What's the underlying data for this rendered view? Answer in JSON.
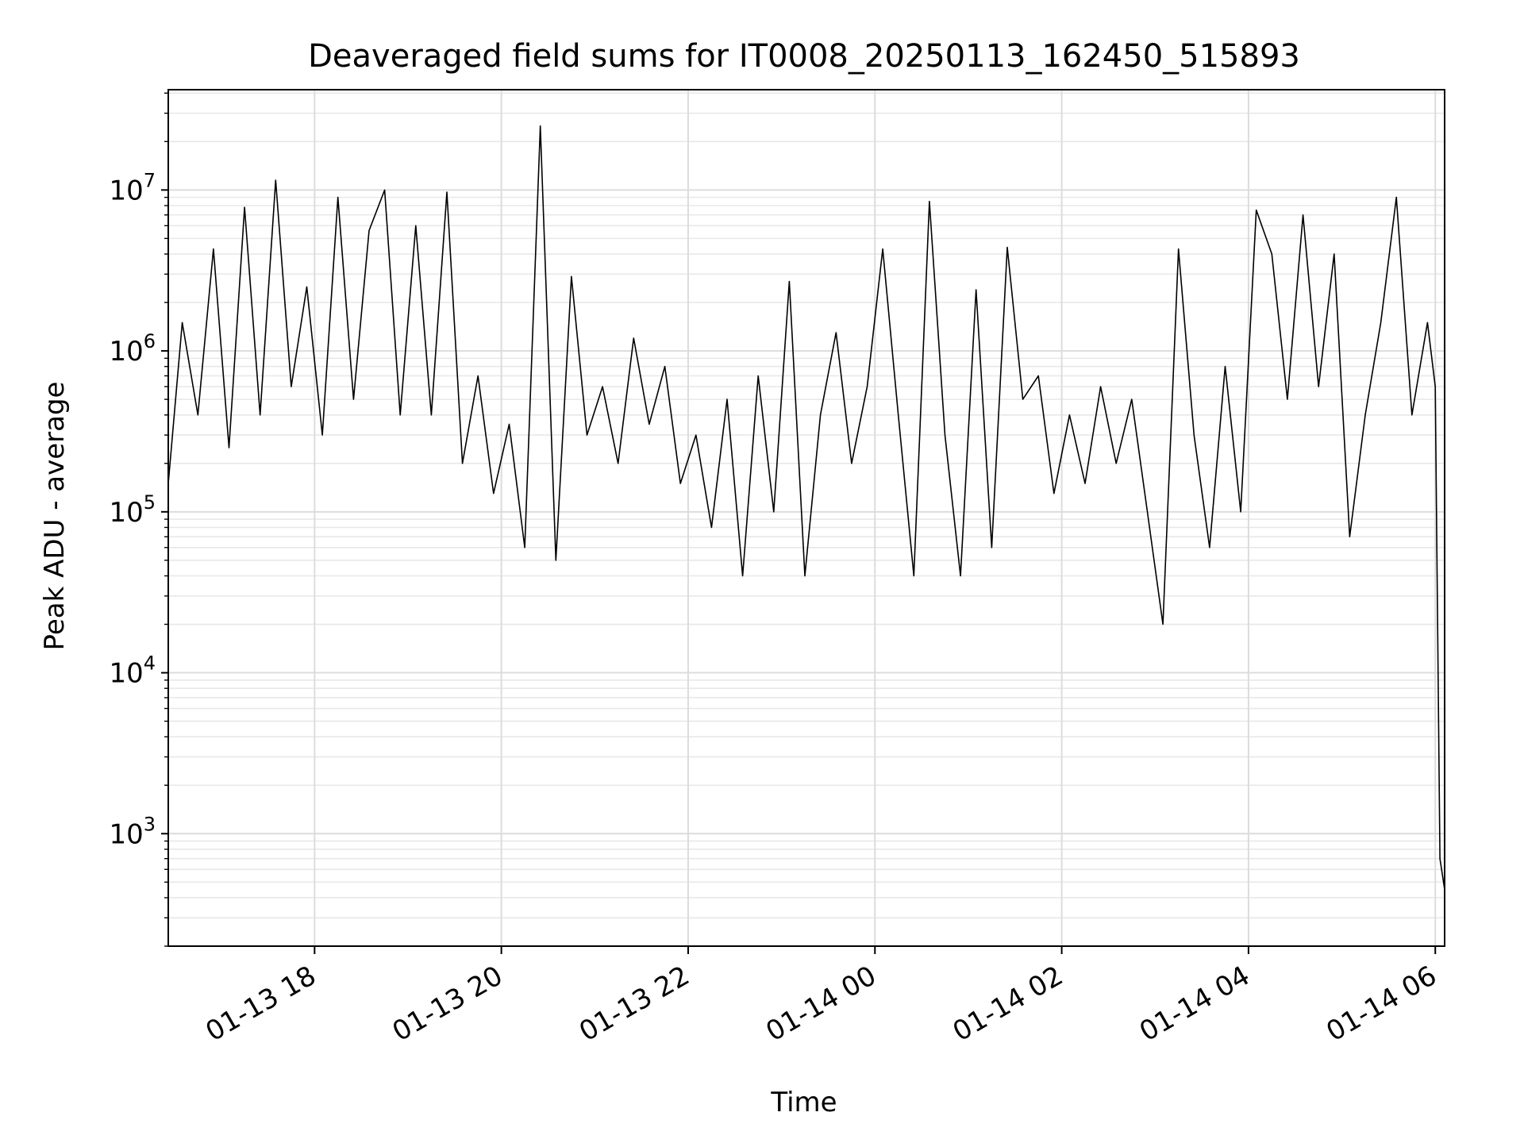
{
  "chart_data": {
    "type": "line",
    "title": "Deaveraged field sums for IT0008_20250113_162450_515893",
    "xlabel": "Time",
    "ylabel": "Peak ADU - average",
    "yscale": "log",
    "xlim": [
      "2025-01-13 16:26",
      "2025-01-14 06:06"
    ],
    "ylim": [
      200,
      42000000
    ],
    "grid": true,
    "line_color": "#000000",
    "x_ticks": [
      {
        "t": "2025-01-13 18:00",
        "label": "01-13 18"
      },
      {
        "t": "2025-01-13 20:00",
        "label": "01-13 20"
      },
      {
        "t": "2025-01-13 22:00",
        "label": "01-13 22"
      },
      {
        "t": "2025-01-14 00:00",
        "label": "01-14 00"
      },
      {
        "t": "2025-01-14 02:00",
        "label": "01-14 02"
      },
      {
        "t": "2025-01-14 04:00",
        "label": "01-14 04"
      },
      {
        "t": "2025-01-14 06:00",
        "label": "01-14 06"
      }
    ],
    "y_ticks": [
      {
        "v": 1000,
        "base": "10",
        "exp": "3"
      },
      {
        "v": 10000,
        "base": "10",
        "exp": "4"
      },
      {
        "v": 100000,
        "base": "10",
        "exp": "5"
      },
      {
        "v": 1000000,
        "base": "10",
        "exp": "6"
      },
      {
        "v": 10000000,
        "base": "10",
        "exp": "7"
      }
    ],
    "series": [
      {
        "x": [
          "2025-01-13 16:26",
          "2025-01-13 16:35",
          "2025-01-13 16:45",
          "2025-01-13 16:55",
          "2025-01-13 17:05",
          "2025-01-13 17:15",
          "2025-01-13 17:25",
          "2025-01-13 17:35",
          "2025-01-13 17:45",
          "2025-01-13 17:55",
          "2025-01-13 18:05",
          "2025-01-13 18:15",
          "2025-01-13 18:25",
          "2025-01-13 18:35",
          "2025-01-13 18:45",
          "2025-01-13 18:55",
          "2025-01-13 19:05",
          "2025-01-13 19:15",
          "2025-01-13 19:25",
          "2025-01-13 19:35",
          "2025-01-13 19:45",
          "2025-01-13 19:55",
          "2025-01-13 20:05",
          "2025-01-13 20:15",
          "2025-01-13 20:25",
          "2025-01-13 20:35",
          "2025-01-13 20:45",
          "2025-01-13 20:55",
          "2025-01-13 21:05",
          "2025-01-13 21:15",
          "2025-01-13 21:25",
          "2025-01-13 21:35",
          "2025-01-13 21:45",
          "2025-01-13 21:55",
          "2025-01-13 22:05",
          "2025-01-13 22:15",
          "2025-01-13 22:25",
          "2025-01-13 22:35",
          "2025-01-13 22:45",
          "2025-01-13 22:55",
          "2025-01-13 23:05",
          "2025-01-13 23:15",
          "2025-01-13 23:25",
          "2025-01-13 23:35",
          "2025-01-13 23:45",
          "2025-01-13 23:55",
          "2025-01-14 00:05",
          "2025-01-14 00:15",
          "2025-01-14 00:25",
          "2025-01-14 00:35",
          "2025-01-14 00:45",
          "2025-01-14 00:55",
          "2025-01-14 01:05",
          "2025-01-14 01:15",
          "2025-01-14 01:25",
          "2025-01-14 01:35",
          "2025-01-14 01:45",
          "2025-01-14 01:55",
          "2025-01-14 02:05",
          "2025-01-14 02:15",
          "2025-01-14 02:25",
          "2025-01-14 02:35",
          "2025-01-14 02:45",
          "2025-01-14 02:55",
          "2025-01-14 03:05",
          "2025-01-14 03:15",
          "2025-01-14 03:25",
          "2025-01-14 03:35",
          "2025-01-14 03:45",
          "2025-01-14 03:55",
          "2025-01-14 04:05",
          "2025-01-14 04:15",
          "2025-01-14 04:25",
          "2025-01-14 04:35",
          "2025-01-14 04:45",
          "2025-01-14 04:55",
          "2025-01-14 05:05",
          "2025-01-14 05:15",
          "2025-01-14 05:25",
          "2025-01-14 05:35",
          "2025-01-14 05:45",
          "2025-01-14 05:55",
          "2025-01-14 06:00",
          "2025-01-14 06:03",
          "2025-01-14 06:06"
        ],
        "y": [
          150000,
          1500000,
          400000,
          4300000,
          250000,
          7800000,
          400000,
          11500000,
          600000,
          2500000,
          300000,
          9000000,
          500000,
          5600000,
          10000000,
          400000,
          6000000,
          400000,
          9700000,
          200000,
          700000,
          130000,
          350000,
          60000,
          25000000,
          50000,
          2900000,
          300000,
          600000,
          200000,
          1200000,
          350000,
          800000,
          150000,
          300000,
          80000,
          500000,
          40000,
          700000,
          100000,
          2700000,
          40000,
          400000,
          1300000,
          200000,
          600000,
          4300000,
          400000,
          40000,
          8500000,
          300000,
          40000,
          2400000,
          60000,
          4400000,
          500000,
          700000,
          130000,
          400000,
          150000,
          600000,
          200000,
          500000,
          100000,
          20000,
          4300000,
          300000,
          60000,
          800000,
          100000,
          7500000,
          4000000,
          500000,
          7000000,
          600000,
          4000000,
          70000,
          400000,
          1500000,
          9000000,
          400000,
          1500000,
          600000,
          700,
          450
        ]
      }
    ]
  }
}
